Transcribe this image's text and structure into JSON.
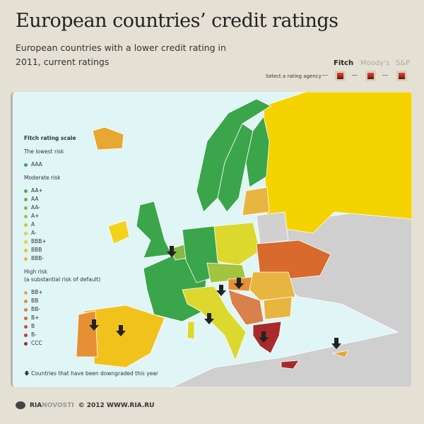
{
  "header": {
    "title": "European countries’ credit ratings",
    "subtitle": "European countries with a lower credit rating in 2011, current ratings"
  },
  "agency_selector": {
    "label": "Select a rating agency",
    "agencies": [
      {
        "name": "Fitch",
        "active": true
      },
      {
        "name": "Moody's",
        "active": false
      },
      {
        "name": "S&P",
        "active": false
      }
    ]
  },
  "legend": {
    "title": "Fitch rating scale",
    "groups": [
      {
        "label": "The lowest risk",
        "items": [
          {
            "rating": "AAA",
            "color": "#3aa54a"
          }
        ]
      },
      {
        "label": "Moderate risk",
        "items": [
          {
            "rating": "AA+",
            "color": "#4fa84a"
          },
          {
            "rating": "AA",
            "color": "#6cb045"
          },
          {
            "rating": "AA-",
            "color": "#86b844"
          },
          {
            "rating": "A+",
            "color": "#a2c43f"
          },
          {
            "rating": "A",
            "color": "#c4cf36"
          },
          {
            "rating": "A-",
            "color": "#dcd82e"
          },
          {
            "rating": "BBB+",
            "color": "#f3d21a"
          },
          {
            "rating": "BBB",
            "color": "#f2c21c"
          },
          {
            "rating": "BBB-",
            "color": "#e8b540"
          }
        ]
      },
      {
        "label": "High risk",
        "sublabel": "(a substantial risk of default)",
        "items": [
          {
            "rating": "BB+",
            "color": "#e5a54a"
          },
          {
            "rating": "BB",
            "color": "#e69035"
          },
          {
            "rating": "BB-",
            "color": "#d9804b"
          },
          {
            "rating": "B+",
            "color": "#d76a2c"
          },
          {
            "rating": "B",
            "color": "#c9562f"
          },
          {
            "rating": "B-",
            "color": "#c23a36"
          },
          {
            "rating": "CCC",
            "color": "#a82a2a"
          }
        ]
      }
    ],
    "downgrade_note": "Countries that have been downgraded this year"
  },
  "footer": {
    "brand_a": "RIA",
    "brand_b": "NOVOSTI",
    "copyright": "© 2012 WWW.RIA.RU"
  }
}
